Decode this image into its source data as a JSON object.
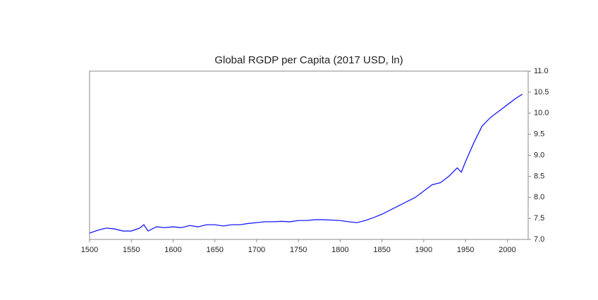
{
  "chart_data": {
    "type": "line",
    "title": "Global RGDP per Capita (2017 USD, ln)",
    "x": [
      1500,
      1510,
      1520,
      1530,
      1540,
      1550,
      1560,
      1565,
      1570,
      1580,
      1590,
      1600,
      1610,
      1620,
      1630,
      1640,
      1650,
      1660,
      1670,
      1680,
      1690,
      1700,
      1710,
      1720,
      1730,
      1740,
      1750,
      1760,
      1770,
      1780,
      1790,
      1800,
      1810,
      1820,
      1830,
      1840,
      1850,
      1860,
      1870,
      1880,
      1890,
      1900,
      1910,
      1920,
      1930,
      1940,
      1945,
      1950,
      1960,
      1970,
      1980,
      1990,
      2000,
      2010,
      2018
    ],
    "values": [
      7.15,
      7.22,
      7.27,
      7.25,
      7.2,
      7.2,
      7.27,
      7.35,
      7.2,
      7.3,
      7.28,
      7.3,
      7.28,
      7.33,
      7.3,
      7.35,
      7.35,
      7.32,
      7.35,
      7.35,
      7.38,
      7.4,
      7.42,
      7.42,
      7.43,
      7.42,
      7.45,
      7.45,
      7.47,
      7.47,
      7.46,
      7.45,
      7.42,
      7.4,
      7.45,
      7.52,
      7.6,
      7.7,
      7.8,
      7.9,
      8.0,
      8.15,
      8.3,
      8.35,
      8.5,
      8.7,
      8.6,
      8.85,
      9.3,
      9.7,
      9.9,
      10.05,
      10.2,
      10.35,
      10.45
    ],
    "color": "#1a1aff",
    "xlim": [
      1500,
      2025
    ],
    "xticks": [
      1500,
      1550,
      1600,
      1650,
      1700,
      1750,
      1800,
      1850,
      1900,
      1950,
      2000
    ],
    "ylim": [
      7,
      11
    ],
    "yticks": [
      {
        "value": 7,
        "label": "7.0"
      },
      7.5,
      {
        "value": 8,
        "label": "8.0"
      },
      8.5,
      {
        "value": 9,
        "label": "9.0"
      },
      9.5,
      {
        "value": 10,
        "label": "10.0"
      },
      10.5,
      {
        "value": 11,
        "label": "11.0"
      }
    ],
    "y_axis_side": "right",
    "grid": false
  }
}
